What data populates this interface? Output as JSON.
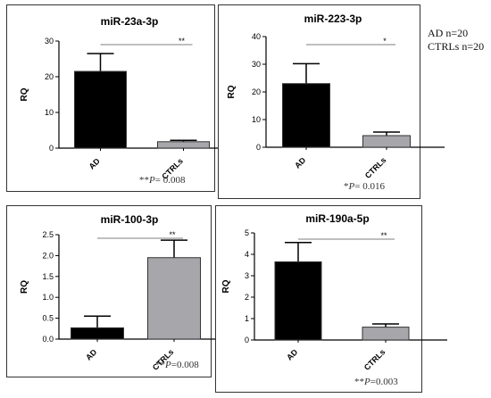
{
  "legend_lines": [
    "AD n=20",
    "CTRLs n=20"
  ],
  "colors": {
    "ad": "#000000",
    "ctrl": "#a7a6ab",
    "axis": "#000000"
  },
  "chart_data": [
    {
      "type": "bar",
      "title": "miR-23a-3p",
      "ylabel": "RQ",
      "categories": [
        "AD",
        "CTRLs"
      ],
      "values": [
        21.5,
        1.8
      ],
      "error": [
        5.0,
        0.4
      ],
      "ylim": [
        0,
        30
      ],
      "yticks": [
        "0",
        "10",
        "20",
        "30"
      ],
      "significance": "**",
      "p_prefix": "**",
      "p_letter": "P",
      "p_rest": "= 0.008"
    },
    {
      "type": "bar",
      "title": "miR-223-3p",
      "ylabel": "RQ",
      "categories": [
        "AD",
        "CTRLs"
      ],
      "values": [
        23,
        4.2
      ],
      "error": [
        7.2,
        1.3
      ],
      "ylim": [
        0,
        40
      ],
      "yticks": [
        "0",
        "10",
        "20",
        "30",
        "40"
      ],
      "significance": "*",
      "p_prefix": "*",
      "p_letter": "P",
      "p_rest": "= 0.016"
    },
    {
      "type": "bar",
      "title": "miR-100-3p",
      "ylabel": "RQ",
      "categories": [
        "AD",
        "CTRLs"
      ],
      "values": [
        0.27,
        1.95
      ],
      "error": [
        0.28,
        0.42
      ],
      "ylim": [
        0,
        2.5
      ],
      "yticks": [
        "0.0",
        "0.5",
        "1.0",
        "1.5",
        "2.0",
        "2.5"
      ],
      "significance": "**",
      "p_prefix": "**",
      "p_letter": "P",
      "p_rest": "=0.008"
    },
    {
      "type": "bar",
      "title": "miR-190a-5p",
      "ylabel": "RQ",
      "categories": [
        "AD",
        "CTRLs"
      ],
      "values": [
        3.65,
        0.6
      ],
      "error": [
        0.9,
        0.15
      ],
      "ylim": [
        0,
        5
      ],
      "yticks": [
        "0",
        "1",
        "2",
        "3",
        "4",
        "5"
      ],
      "significance": "**",
      "p_prefix": "**",
      "p_letter": "P",
      "p_rest": "=0.003"
    }
  ]
}
